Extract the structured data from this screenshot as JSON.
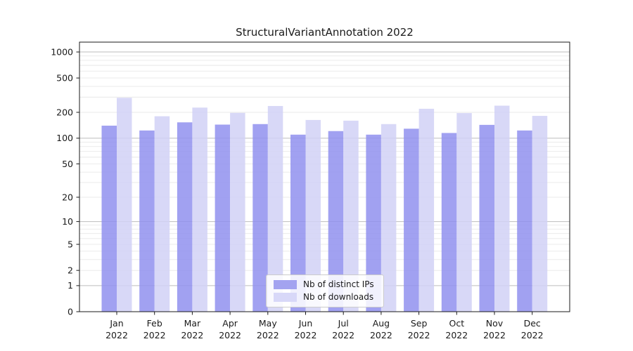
{
  "chart_data": {
    "type": "bar",
    "title": "StructuralVariantAnnotation 2022",
    "categories": [
      "Jan",
      "Feb",
      "Mar",
      "Apr",
      "May",
      "Jun",
      "Jul",
      "Aug",
      "Sep",
      "Oct",
      "Nov",
      "Dec"
    ],
    "year_label": "2022",
    "series": [
      {
        "name": "Nb of distinct IPs",
        "values": [
          140,
          123,
          153,
          144,
          146,
          110,
          121,
          110,
          129,
          115,
          143,
          123
        ],
        "bar_color": "#9191ee",
        "swatch_color": "#a3a3f0"
      },
      {
        "name": "Nb of downloads",
        "values": [
          295,
          180,
          227,
          197,
          237,
          163,
          160,
          146,
          220,
          196,
          239,
          182
        ],
        "bar_color": "#d1d1f6",
        "swatch_color": "#d8d8f8"
      }
    ],
    "bar_opacity": 0.85,
    "yscale": "log1p",
    "yticks": [
      0,
      1,
      2,
      5,
      10,
      20,
      50,
      100,
      200,
      500,
      1000
    ],
    "ylim": [
      0,
      1300
    ],
    "grid_major": [
      1,
      10,
      100,
      1000
    ],
    "grid": "on",
    "legend_position": "lower center",
    "xlabel": "",
    "ylabel": "",
    "colors": {
      "axis": "#1a1a1a",
      "text": "#1a1a1a",
      "grid_major": "#bdbdbd",
      "grid_minor": "#e8e8e8",
      "background": "#ffffff"
    }
  }
}
